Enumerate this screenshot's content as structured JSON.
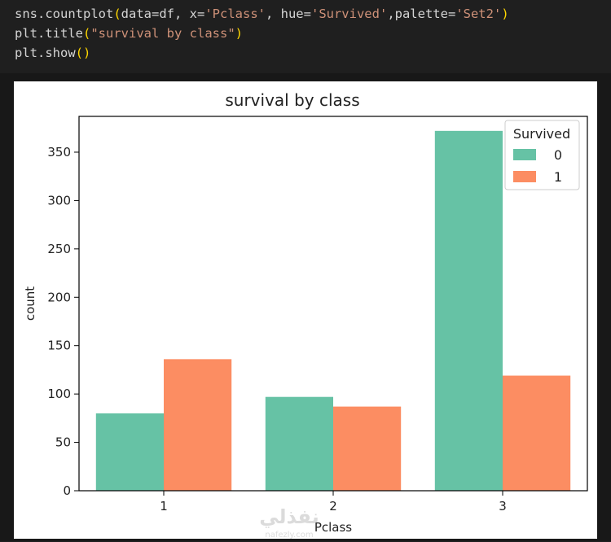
{
  "code": {
    "line1": {
      "p1": "sns.countplot",
      "p2": "(",
      "p3": "data=df, x=",
      "p4": "'Pclass'",
      "p5": ", hue=",
      "p6": "'Survived'",
      "p7": ",palette=",
      "p8": "'Set2'",
      "p9": ")"
    },
    "line2": {
      "p1": "plt.title",
      "p2": "(",
      "p3": "\"survival by class\"",
      "p4": ")"
    },
    "line3": {
      "p1": "plt.show",
      "p2": "()"
    }
  },
  "watermark": {
    "text": "نفذلي",
    "sub": "nafezly.com"
  },
  "chart_data": {
    "type": "bar",
    "title": "survival by class",
    "xlabel": "Pclass",
    "ylabel": "count",
    "categories": [
      "1",
      "2",
      "3"
    ],
    "series": [
      {
        "name": "0",
        "values": [
          80,
          97,
          372
        ],
        "color": "#66c2a5"
      },
      {
        "name": "1",
        "values": [
          136,
          87,
          119
        ],
        "color": "#fc8d62"
      }
    ],
    "ylim": [
      0,
      387
    ],
    "yticks": [
      0,
      50,
      100,
      150,
      200,
      250,
      300,
      350
    ],
    "legend": {
      "title": "Survived",
      "placement": "top-right"
    },
    "grid": false
  }
}
